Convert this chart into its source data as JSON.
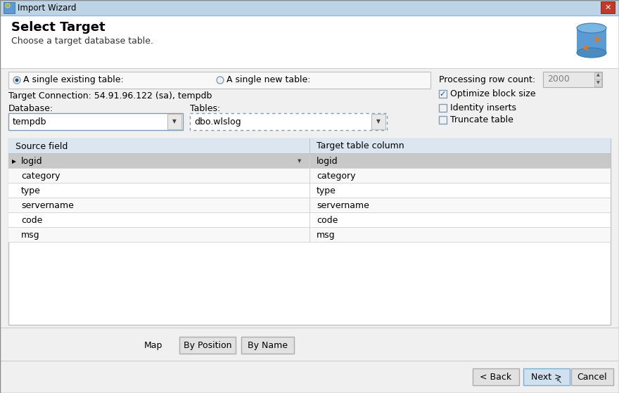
{
  "title_bar_text": "Import Wizard",
  "title_bar_bg": "#bdd4e7",
  "title_bar_text_color": "#000000",
  "close_btn_color": "#c0392b",
  "dialog_bg": "#f0f0f0",
  "header_bg": "#ffffff",
  "header_title": "Select Target",
  "header_subtitle": "Choose a target database table.",
  "radio1_text": "A single existing table:",
  "radio2_text": "A single new table:",
  "processing_label": "Processing row count:",
  "processing_value": "2000",
  "target_conn_text": "Target Connection: 54.91.96.122 (sa), tempdb",
  "db_label": "Database:",
  "db_value": "tempdb",
  "tables_label": "Tables:",
  "tables_value": "dbo.wlslog",
  "checkbox1_text": "Optimize block size",
  "checkbox1_checked": true,
  "checkbox2_text": "Identity inserts",
  "checkbox2_checked": false,
  "checkbox3_text": "Truncate table",
  "checkbox3_checked": false,
  "col1_header": "Source field",
  "col2_header": "Target table column",
  "rows": [
    [
      "logid",
      "logid"
    ],
    [
      "category",
      "category"
    ],
    [
      "type",
      "type"
    ],
    [
      "servername",
      "servername"
    ],
    [
      "code",
      "code"
    ],
    [
      "msg",
      "msg"
    ]
  ],
  "selected_row": 0,
  "selected_row_bg": "#c8c8c8",
  "row_bg1": "#ffffff",
  "row_bg2": "#f8f8f8",
  "header_row_bg": "#dce6f1",
  "grid_line_color": "#d0d0d0",
  "map_label": "Map",
  "btn1_text": "By Position",
  "btn2_text": "By Name",
  "back_btn_text": "< Back",
  "next_btn_text": "Next >",
  "cancel_btn_text": "Cancel",
  "btn_bg": "#e1e1e1",
  "btn_border": "#adadad",
  "next_btn_bg": "#cfe0f0",
  "next_btn_border": "#7bafd4",
  "border_color": "#adadad",
  "text_color": "#000000",
  "section_bg": "#ffffff"
}
